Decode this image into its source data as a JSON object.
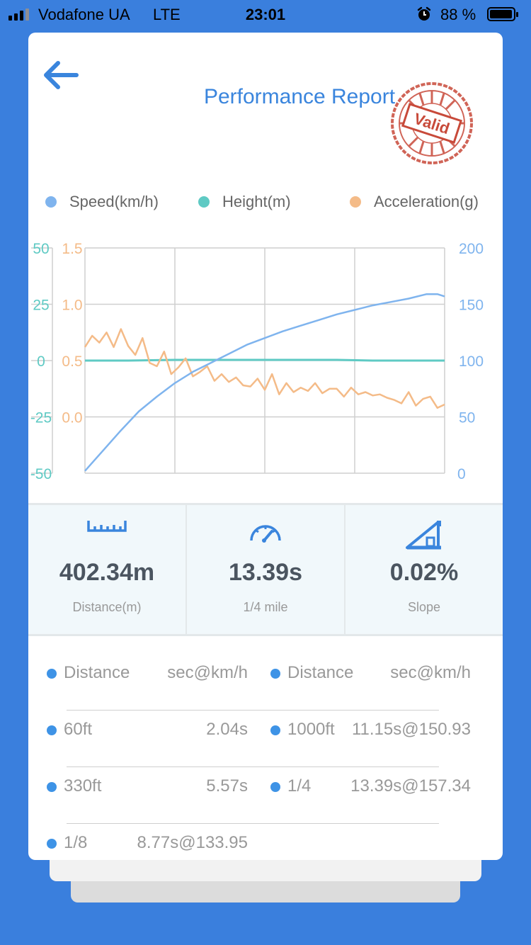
{
  "status": {
    "carrier": "Vodafone UA",
    "network": "LTE",
    "time": "23:01",
    "battery": "88 %",
    "battery_level": 0.88
  },
  "header": {
    "title": "Performance Report",
    "stamp": "Valid",
    "back_icon": "arrow-left-icon"
  },
  "colors": {
    "speed": "#7fb4ee",
    "height": "#5fcac4",
    "acceleration": "#f4bb88",
    "accent": "#3a85dd"
  },
  "legend": [
    {
      "label": "Speed(km/h)"
    },
    {
      "label": "Height(m)"
    },
    {
      "label": "Acceleration(g)"
    }
  ],
  "chart_data": {
    "type": "line",
    "grid": true,
    "legend_position": "top",
    "axes": {
      "height_left": {
        "ticks": [
          "50",
          "25",
          "0",
          "-25",
          "-50"
        ],
        "range": [
          -50,
          50
        ]
      },
      "acceleration_left": {
        "ticks": [
          "1.5",
          "1.0",
          "0.5",
          "0.0"
        ],
        "range": [
          -0.5,
          1.5
        ]
      },
      "speed_right": {
        "ticks": [
          "200",
          "150",
          "100",
          "50",
          "0"
        ],
        "range": [
          0,
          200
        ]
      }
    },
    "x_range": [
      0,
      100
    ],
    "series": [
      {
        "name": "Speed(km/h)",
        "axis": "speed_right",
        "x": [
          0,
          5,
          10,
          15,
          20,
          25,
          30,
          35,
          40,
          45,
          50,
          55,
          60,
          65,
          70,
          75,
          80,
          85,
          90,
          95,
          98,
          100
        ],
        "y": [
          2,
          20,
          38,
          55,
          68,
          80,
          90,
          98,
          106,
          114,
          120,
          126,
          131,
          136,
          141,
          145,
          149,
          152,
          155,
          159,
          159,
          157
        ]
      },
      {
        "name": "Height(m)",
        "axis": "height_left",
        "x": [
          0,
          12,
          25,
          40,
          55,
          70,
          80,
          90,
          100
        ],
        "y": [
          0,
          0,
          0.3,
          0.3,
          0.3,
          0.3,
          0,
          0,
          0
        ]
      },
      {
        "name": "Acceleration(g)",
        "axis": "acceleration_left",
        "x": [
          0,
          2,
          4,
          6,
          8,
          10,
          12,
          14,
          16,
          18,
          20,
          22,
          24,
          26,
          28,
          30,
          32,
          34,
          36,
          38,
          40,
          42,
          44,
          46,
          48,
          50,
          52,
          54,
          56,
          58,
          60,
          62,
          64,
          66,
          68,
          70,
          72,
          74,
          76,
          78,
          80,
          82,
          84,
          86,
          88,
          90,
          92,
          94,
          96,
          98,
          100
        ],
        "y": [
          0.62,
          0.72,
          0.66,
          0.75,
          0.62,
          0.78,
          0.63,
          0.55,
          0.7,
          0.48,
          0.45,
          0.58,
          0.38,
          0.44,
          0.52,
          0.36,
          0.4,
          0.45,
          0.32,
          0.38,
          0.31,
          0.35,
          0.28,
          0.27,
          0.34,
          0.24,
          0.38,
          0.2,
          0.3,
          0.22,
          0.26,
          0.23,
          0.3,
          0.21,
          0.25,
          0.25,
          0.18,
          0.26,
          0.2,
          0.22,
          0.19,
          0.2,
          0.17,
          0.15,
          0.12,
          0.22,
          0.1,
          0.16,
          0.18,
          0.08,
          0.11
        ]
      }
    ]
  },
  "stats": [
    {
      "icon": "ruler-icon",
      "value": "402.34m",
      "label": "Distance(m)"
    },
    {
      "icon": "speedometer-icon",
      "value": "13.39s",
      "label": "1/4 mile"
    },
    {
      "icon": "slope-icon",
      "value": "0.02%",
      "label": "Slope"
    }
  ],
  "table": {
    "headers": [
      {
        "left": "Distance",
        "right": "sec@km/h"
      },
      {
        "left": "Distance",
        "right": "sec@km/h"
      }
    ],
    "rows": [
      [
        {
          "label": "60ft",
          "value": "2.04s"
        },
        {
          "label": "1000ft",
          "value": "11.15s@150.93"
        }
      ],
      [
        {
          "label": "330ft",
          "value": "5.57s"
        },
        {
          "label": "1/4",
          "value": "13.39s@157.34"
        }
      ],
      [
        {
          "label": "1/8",
          "value": "8.77s@133.95"
        }
      ]
    ]
  }
}
